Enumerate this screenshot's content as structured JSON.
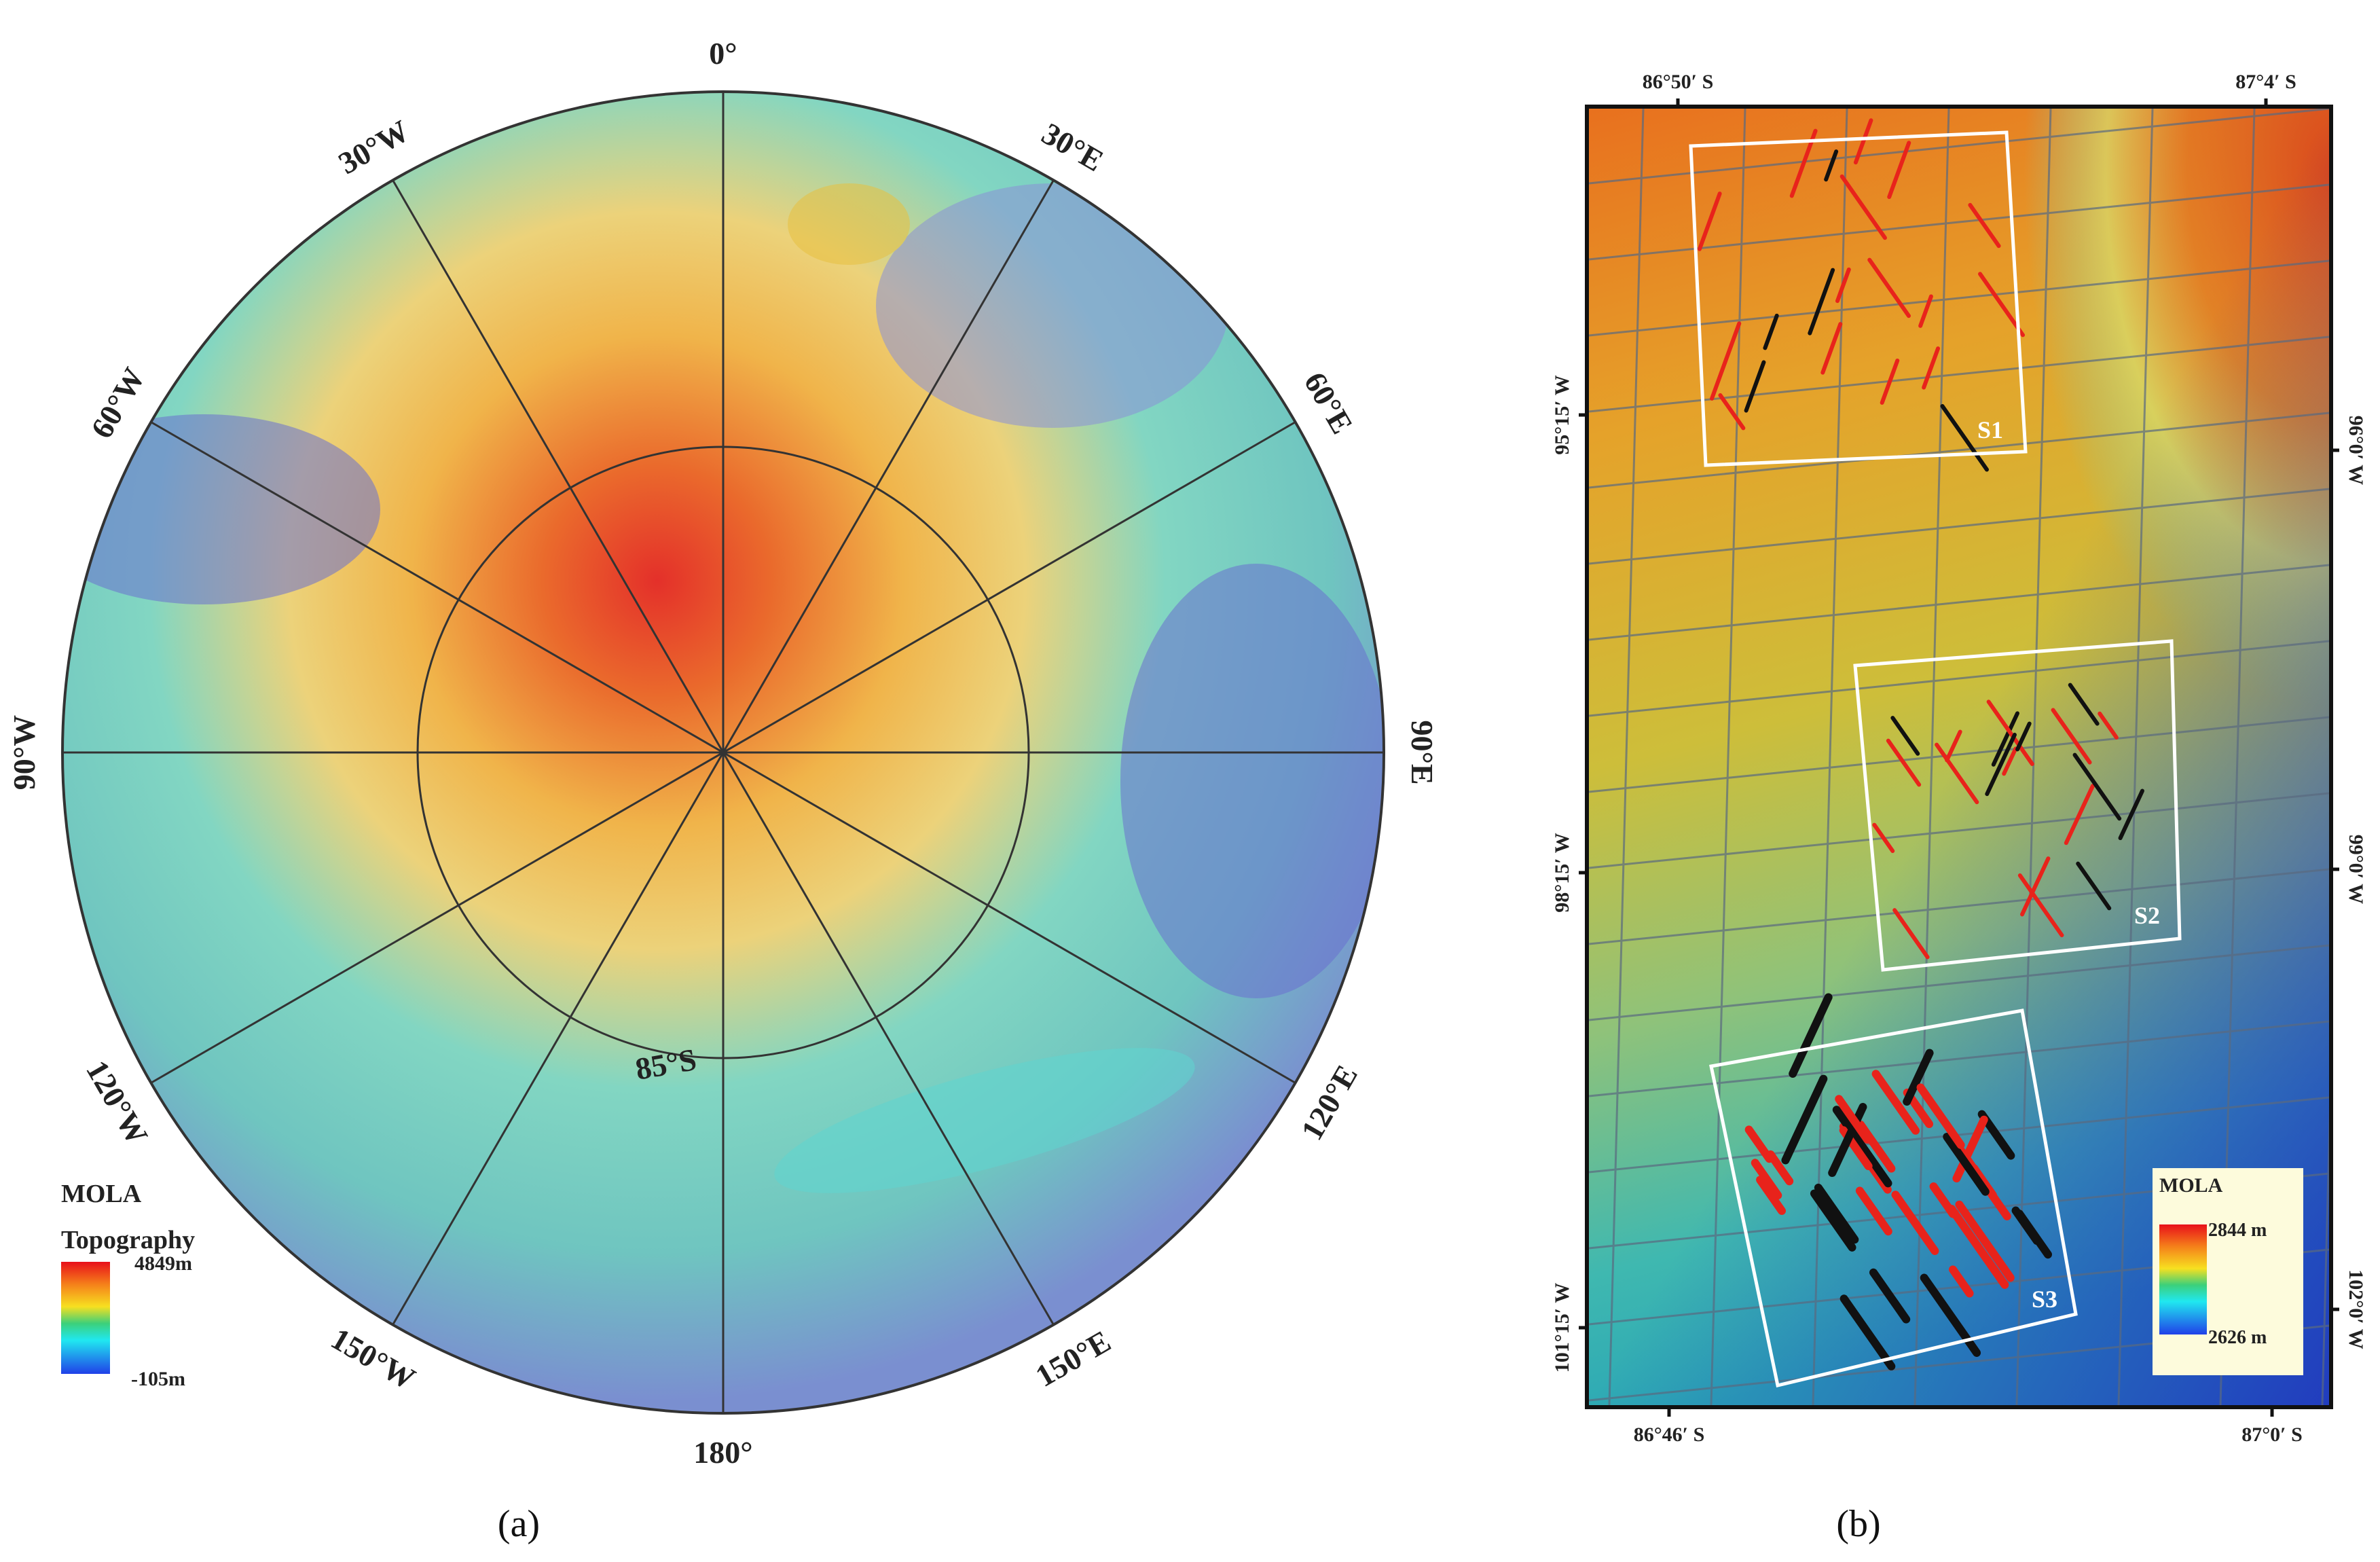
{
  "panel_a": {
    "caption": "(a)",
    "meridian_labels": [
      "0°",
      "30°E",
      "60°E",
      "90°E",
      "120°E",
      "150°E",
      "180°",
      "150°W",
      "120°W",
      "90°W",
      "60°W",
      "30°W"
    ],
    "parallel_label": "85°S",
    "legend": {
      "title": "MOLA",
      "subtitle": "Topography",
      "max": "4849m",
      "min": "-105m"
    }
  },
  "panel_b": {
    "caption": "(b)",
    "top_labels": [
      "86°50′ S",
      "87°4′ S"
    ],
    "bottom_labels": [
      "86°46′ S",
      "87°0′ S"
    ],
    "left_labels": [
      "95°15′ W",
      "98°15′ W",
      "101°15′ W"
    ],
    "right_labels": [
      "96°0′ W",
      "99°0′ W",
      "102°0′ W"
    ],
    "regions": [
      "S1",
      "S2",
      "S3"
    ],
    "legend": {
      "title": "MOLA",
      "max": "2844 m",
      "min": "2626 m"
    },
    "track_colors": {
      "red": "#e8231b",
      "black": "#111111"
    }
  }
}
